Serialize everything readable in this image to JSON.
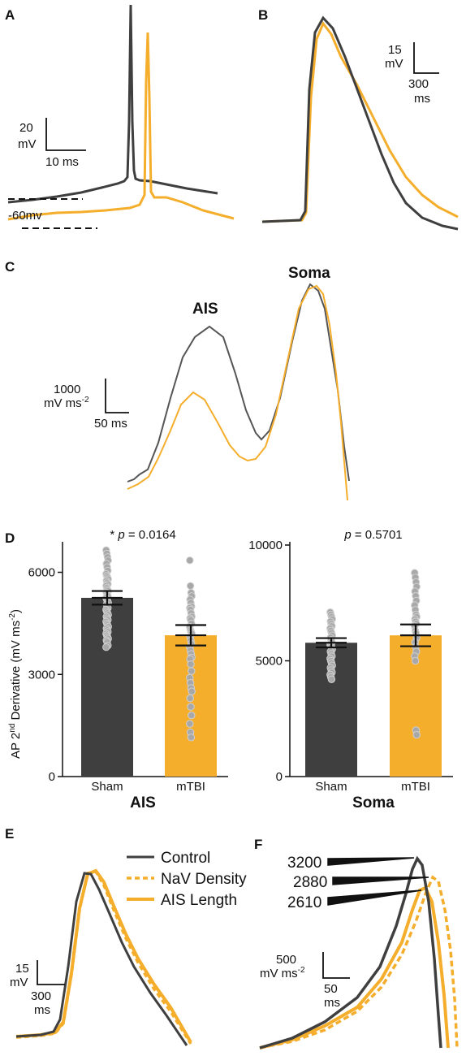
{
  "colors": {
    "control": "#3f3f3f",
    "mtbi": "#f5ae2c",
    "dots": "#a8a8a8"
  },
  "panels": {
    "A": {
      "label": "A",
      "scale_y": "20",
      "scale_y_unit": "mV",
      "scale_x": "10 ms",
      "baseline_label": "-60mv"
    },
    "B": {
      "label": "B",
      "scale_y": "15",
      "scale_y_unit": "mV",
      "scale_x": "300",
      "scale_x_unit": "ms"
    },
    "C": {
      "label": "C",
      "ais_label": "AIS",
      "soma_label": "Soma",
      "scale_y": "1000",
      "scale_y_unit": "mV ms",
      "scale_y_exp": "-2",
      "scale_x": "50 ms"
    },
    "D": {
      "label": "D",
      "ylabel_pre": "AP 2",
      "ylabel_sup": "nd",
      "ylabel_mid": " Derivative (mV ms",
      "ylabel_sup2": "-2",
      "ylabel_post": ")"
    },
    "E": {
      "label": "E",
      "scale_y": "15",
      "scale_y_unit": "mV",
      "scale_x": "300",
      "scale_x_unit": "ms"
    },
    "F": {
      "label": "F",
      "scale_y": "500",
      "scale_y_unit": "mV ms",
      "scale_y_exp": "-2",
      "scale_x": "50",
      "scale_x_unit": "ms",
      "peak_labels": [
        "3200",
        "2880",
        "2610"
      ]
    }
  },
  "legend": {
    "items": [
      "Control",
      "NaV Density",
      "AIS Length"
    ]
  },
  "chart_data": [
    {
      "type": "bar",
      "panel": "D-AIS",
      "title": "AIS",
      "stat": "* p = 0.0164",
      "categories": [
        "Sham",
        "mTBI"
      ],
      "values": [
        5250,
        4150
      ],
      "sem": [
        200,
        300
      ],
      "ylim": [
        0,
        6800
      ],
      "yticks": [
        "0",
        "3000",
        "6000"
      ],
      "points": [
        [
          6650,
          6550,
          6450,
          6350,
          6250,
          6150,
          6050,
          5950,
          5900,
          5850,
          5800,
          5750,
          5700,
          5650,
          5600,
          5550,
          5500,
          5450,
          5400,
          5350,
          5300,
          5250,
          5200,
          5150,
          5100,
          5050,
          5000,
          4950,
          4900,
          4850,
          4800,
          4750,
          4700,
          4650,
          4600,
          4550,
          4500,
          4450,
          4400,
          4350,
          4300,
          4250,
          4200,
          4150,
          4100,
          4050,
          4000,
          3950,
          3850,
          3800
        ],
        [
          6350,
          5600,
          5400,
          5300,
          5200,
          5100,
          5000,
          4950,
          4900,
          4800,
          4700,
          4650,
          4600,
          4500,
          4400,
          4300,
          4250,
          4200,
          4100,
          4000,
          3900,
          3800,
          3700,
          3600,
          3500,
          3450,
          3300,
          3100,
          2900,
          2750,
          2600,
          2500,
          2300,
          2050,
          1800,
          1550,
          1300,
          1150
        ]
      ]
    },
    {
      "type": "bar",
      "panel": "D-Soma",
      "title": "Soma",
      "stat": "p = 0.5701",
      "categories": [
        "Sham",
        "mTBI"
      ],
      "values": [
        5780,
        6100
      ],
      "sem": [
        200,
        470
      ],
      "ylim": [
        0,
        10000
      ],
      "yticks": [
        "0",
        "5000",
        "10000"
      ],
      "points": [
        [
          7100,
          7000,
          6900,
          6800,
          6700,
          6600,
          6500,
          6400,
          6300,
          6200,
          6100,
          6000,
          5900,
          5800,
          5700,
          5650,
          5600,
          5500,
          5400,
          5300,
          5200,
          5100,
          5000,
          4900,
          4800,
          4700,
          4600,
          4500,
          4400,
          4300,
          4200
        ],
        [
          8800,
          8600,
          8400,
          8200,
          8000,
          7800,
          7600,
          7400,
          7200,
          7000,
          6900,
          6800,
          6700,
          6600,
          6500,
          6300,
          6200,
          6000,
          5800,
          5600,
          5400,
          5200,
          5000,
          2000,
          1800
        ]
      ]
    }
  ]
}
